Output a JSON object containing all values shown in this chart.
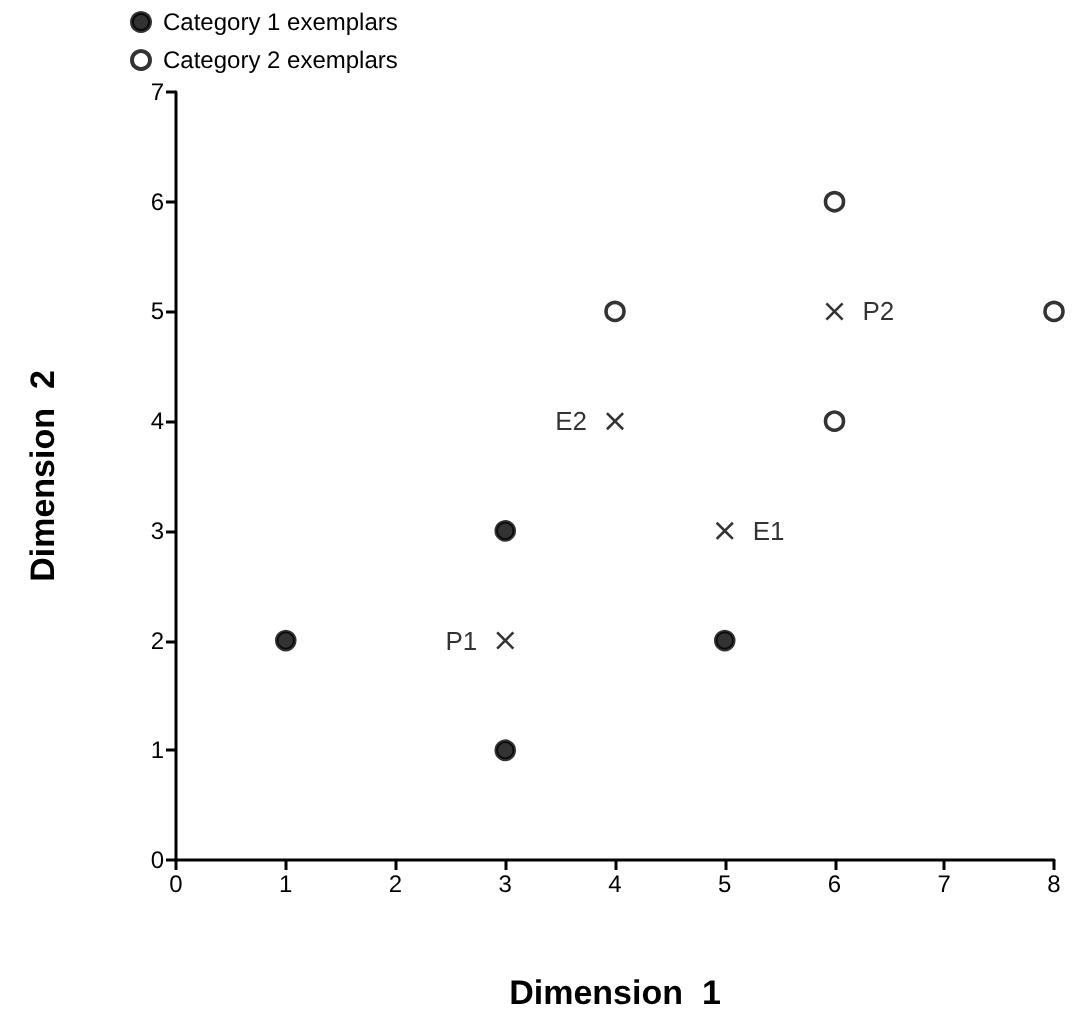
{
  "chart_data": {
    "type": "scatter",
    "xlabel": "Dimension  1",
    "ylabel": "Dimension  2",
    "series": [
      {
        "name": "Category 1 exemplars",
        "color": "#000000",
        "marker": "circle",
        "x": [
          1,
          3,
          3,
          5
        ],
        "values": [
          2,
          3,
          1,
          2
        ]
      },
      {
        "name": "Category 2 exemplars",
        "color": "#ffffff",
        "marker": "circle",
        "x": [
          4,
          6,
          6,
          8
        ],
        "values": [
          5,
          6,
          4,
          5
        ]
      },
      {
        "color": "#000000",
        "marker": "cross",
        "x": [
          3,
          4,
          5,
          6
        ],
        "values": [
          2,
          4,
          3,
          5
        ]
      }
    ],
    "annotations": [
      {
        "text": "P1",
        "x": 3,
        "y": 2
      },
      {
        "text": "E2",
        "x": 4,
        "y": 4
      },
      {
        "text": "E1",
        "x": 5,
        "y": 3
      },
      {
        "text": "P2",
        "x": 6,
        "y": 5
      }
    ],
    "xlim": [
      0,
      8
    ],
    "xticks": [
      0,
      1,
      2,
      3,
      4,
      5,
      6,
      7,
      8
    ],
    "ylim": [
      0,
      7
    ],
    "yticks": [
      0,
      1,
      2,
      3,
      4,
      5,
      6,
      7
    ],
    "grid": false,
    "legend": "top left"
  }
}
